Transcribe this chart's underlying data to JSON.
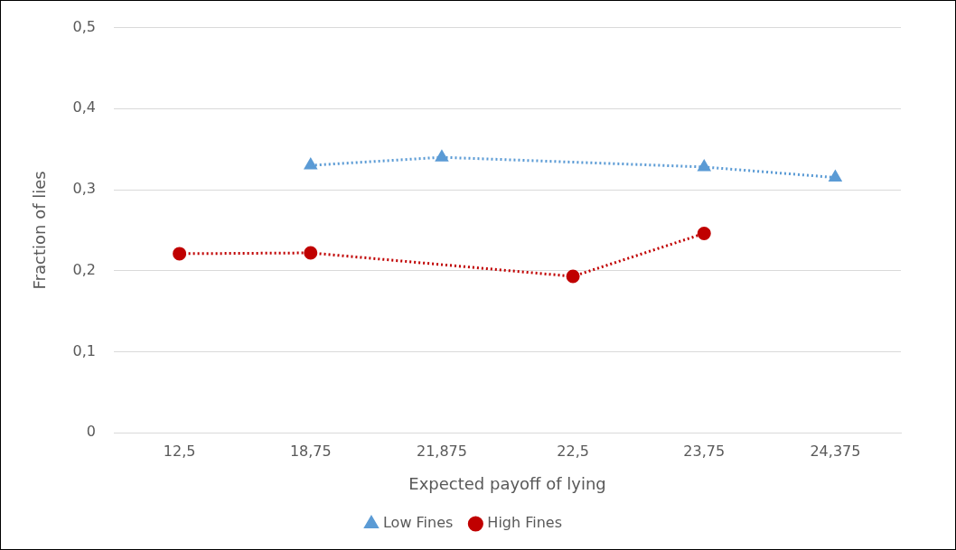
{
  "chart_data": {
    "type": "line",
    "xlabel": "Expected payoff of lying",
    "ylabel": "Fraction of lies",
    "categories": [
      "12,5",
      "18,75",
      "21,875",
      "22,5",
      "23,75",
      "24,375"
    ],
    "series": [
      {
        "name": "Low Fines",
        "color": "#5b9bd5",
        "marker": "triangle",
        "values": [
          null,
          0.33,
          0.34,
          null,
          0.328,
          0.315
        ]
      },
      {
        "name": "High Fines",
        "color": "#c00000",
        "marker": "circle",
        "values": [
          0.221,
          0.222,
          null,
          0.193,
          0.246,
          null
        ]
      }
    ],
    "ylim": [
      0,
      0.5
    ],
    "yticks": [
      {
        "value": 0,
        "label": "0"
      },
      {
        "value": 0.1,
        "label": "0,1"
      },
      {
        "value": 0.2,
        "label": "0,2"
      },
      {
        "value": 0.3,
        "label": "0,3"
      },
      {
        "value": 0.4,
        "label": "0,4"
      },
      {
        "value": 0.5,
        "label": "0,5"
      }
    ],
    "grid": "y",
    "legend": "bottom",
    "line_style": "dotted"
  }
}
